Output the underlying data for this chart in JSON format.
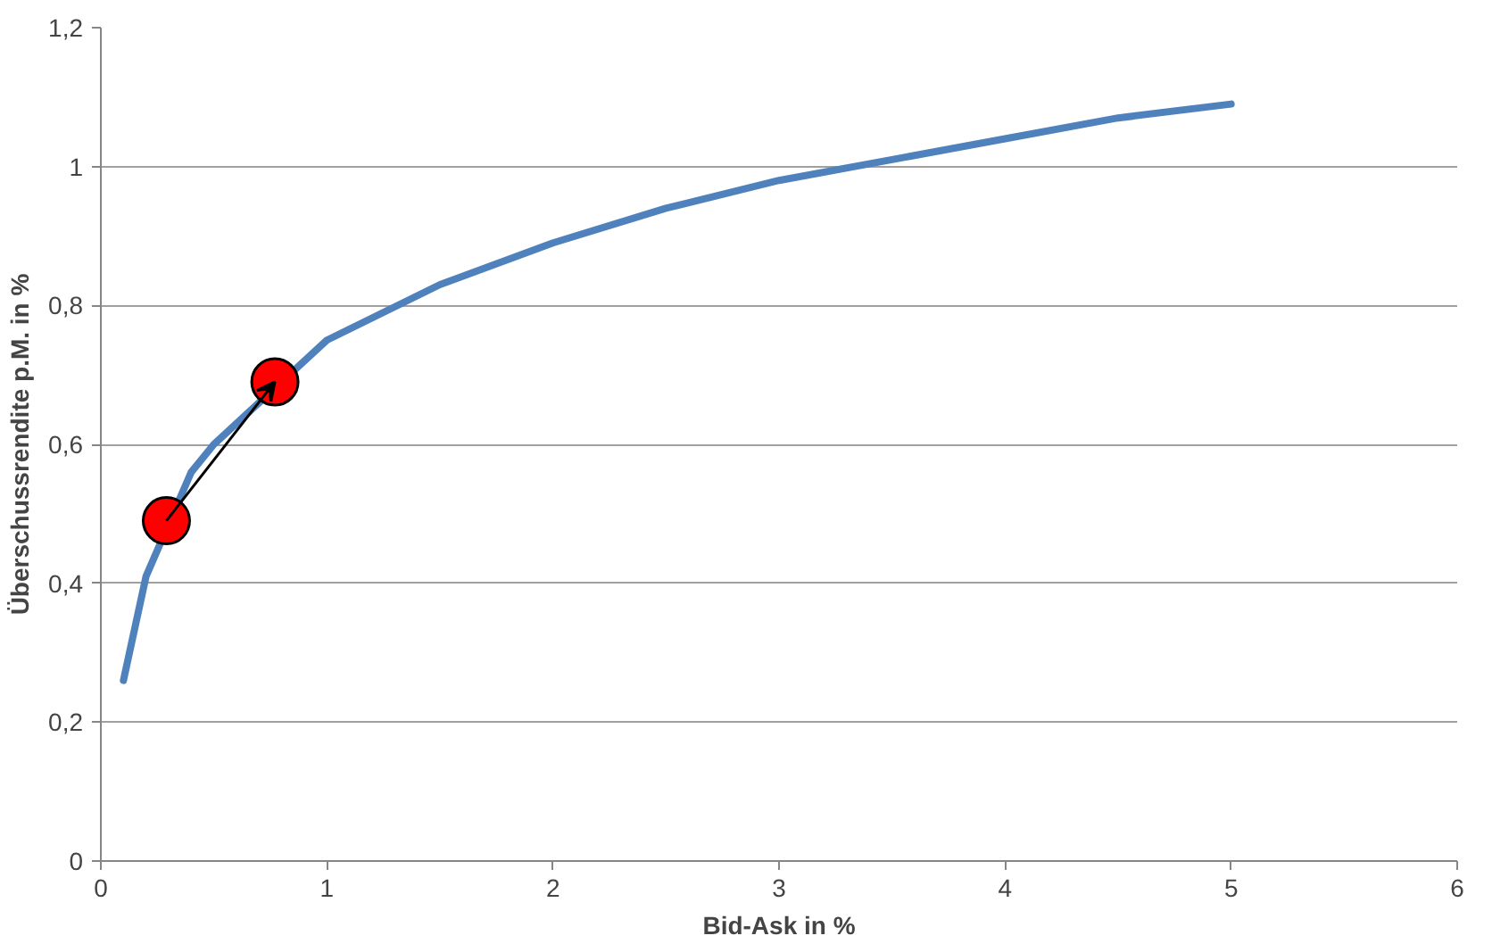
{
  "chart_data": {
    "type": "line",
    "xlabel": "Bid-Ask in %",
    "ylabel": "Überschussrendite p.M. in %",
    "xlim": [
      0,
      6
    ],
    "xticks": [
      0,
      1,
      2,
      3,
      4,
      5,
      6
    ],
    "ylim": [
      0,
      1.2
    ],
    "yticks": [
      0,
      {
        "value": 0.2,
        "label": "0,2"
      },
      {
        "value": 0.4,
        "label": "0,4"
      },
      {
        "value": 0.6,
        "label": "0,6"
      },
      {
        "value": 0.8,
        "label": "0,8"
      },
      1,
      {
        "value": 1.2,
        "label": "1,2"
      }
    ],
    "grid": "y",
    "line_style": "solid",
    "series": [
      {
        "color": "#4f81bd",
        "x": [
          0.1,
          0.2,
          0.4,
          0.5,
          1,
          1.5,
          2,
          2.5,
          3,
          3.5,
          4,
          4.5,
          5
        ],
        "values": [
          0.26,
          0.41,
          0.56,
          0.6,
          0.75,
          0.83,
          0.89,
          0.94,
          0.98,
          1.01,
          1.04,
          1.07,
          1.09
        ]
      },
      {
        "type": "scatter",
        "color": "#ff0000",
        "marker": "circle",
        "x": [
          0.29,
          0.77
        ],
        "values": [
          0.49,
          0.69
        ]
      }
    ]
  }
}
